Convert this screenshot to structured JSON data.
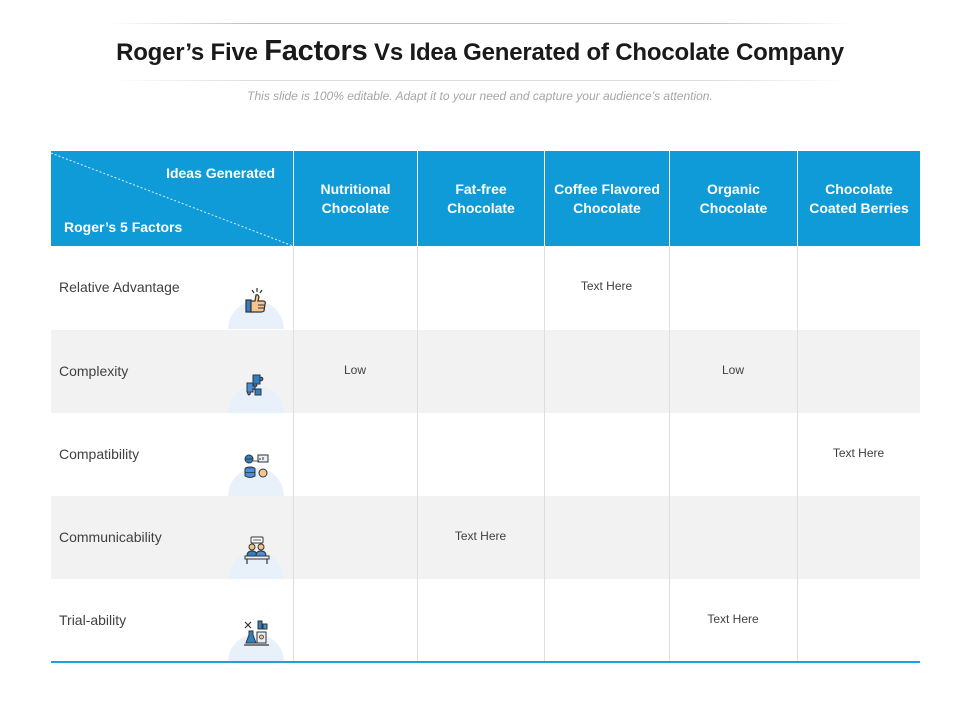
{
  "title": {
    "part1": "Roger’s Five ",
    "emphasis": "Factors",
    "part2": " Vs Idea Generated of Chocolate Company"
  },
  "subtitle": "This slide is 100% editable. Adapt it to your need and capture your audience’s attention.",
  "table": {
    "corner_top": "Ideas Generated",
    "corner_bottom": "Roger’s 5 Factors",
    "columns": [
      {
        "line1": "Nutritional",
        "line2": "Chocolate"
      },
      {
        "line1": "Fat-free",
        "line2": "Chocolate"
      },
      {
        "line1": "Coffee Flavored",
        "line2": "Chocolate"
      },
      {
        "line1": "Organic",
        "line2": "Chocolate"
      },
      {
        "line1": "Chocolate",
        "line2": "Coated Berries"
      }
    ],
    "rows": [
      {
        "factor": "Relative Advantage",
        "icon": "thumbs-up-icon",
        "cells": [
          "",
          "",
          "Text Here",
          "",
          ""
        ]
      },
      {
        "factor": "Complexity",
        "icon": "puzzle-pieces-icon",
        "cells": [
          "Low",
          "",
          "",
          "Low",
          ""
        ]
      },
      {
        "factor": "Compatibility",
        "icon": "network-database-icon",
        "cells": [
          "",
          "",
          "",
          "",
          "Text Here"
        ]
      },
      {
        "factor": "Communicability",
        "icon": "presenter-desk-icon",
        "cells": [
          "",
          "Text Here",
          "",
          "",
          ""
        ]
      },
      {
        "factor": "Trial-ability",
        "icon": "lab-experiment-icon",
        "cells": [
          "",
          "",
          "",
          "Text Here",
          ""
        ]
      }
    ]
  },
  "colors": {
    "header_blue": "#0f9bd7",
    "row_alt": "#f2f2f2",
    "icon_circle": "#e8f1fa"
  }
}
